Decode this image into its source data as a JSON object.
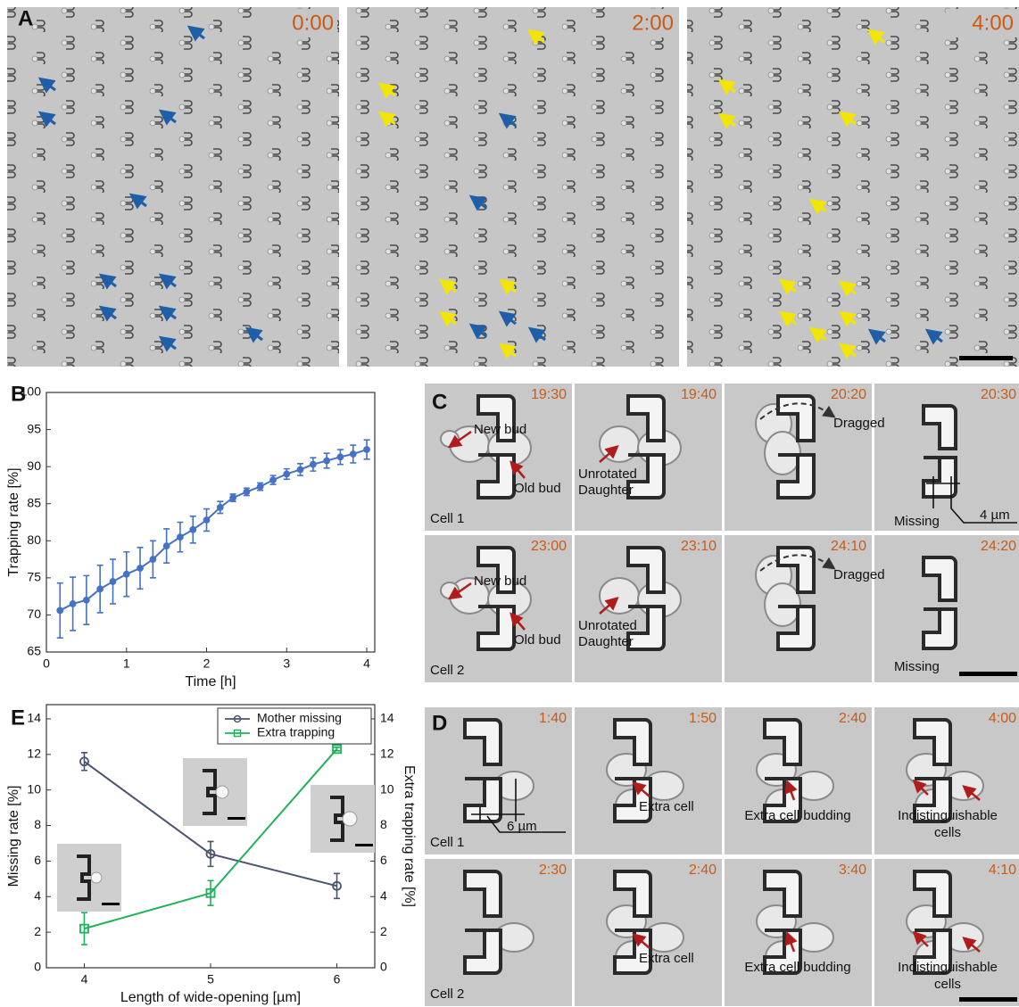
{
  "panel_labels": [
    "A",
    "B",
    "C",
    "D",
    "E"
  ],
  "panel_a": {
    "timestamps": [
      "0:00",
      "2:00",
      "4:00"
    ]
  },
  "panel_c": {
    "rows": [
      {
        "cell": "Cell 1",
        "times": [
          "19:30",
          "19:40",
          "20:20",
          "20:30"
        ],
        "new_bud": "New bud",
        "old_bud": "Old bud",
        "unrotated": [
          "Unrotated",
          "Daughter"
        ],
        "dragged": "Dragged",
        "missing": "Missing",
        "scale": "4 µm"
      },
      {
        "cell": "Cell 2",
        "times": [
          "23:00",
          "23:10",
          "24:10",
          "24:20"
        ],
        "new_bud": "New bud",
        "old_bud": "Old bud",
        "unrotated": [
          "Unrotated",
          "Daughter"
        ],
        "dragged": "Dragged",
        "missing": "Missing"
      }
    ]
  },
  "panel_d": {
    "rows": [
      {
        "cell": "Cell 1",
        "times": [
          "1:40",
          "1:50",
          "2:40",
          "4:00"
        ],
        "extra_cell": "Extra cell",
        "budding": "Extra cell budding",
        "indistinguishable": [
          "Indistinguishable",
          "cells"
        ],
        "scale": "6 µm"
      },
      {
        "cell": "Cell 2",
        "times": [
          "2:30",
          "2:40",
          "3:40",
          "4:10"
        ],
        "extra_cell": "Extra cell",
        "budding": "Extra cell budding",
        "indistinguishable": [
          "Indistinguishable",
          "cells"
        ]
      }
    ]
  },
  "chart_data": [
    {
      "type": "line",
      "xlabel": "Time [h]",
      "ylabel": "Trapping rate [%]",
      "x": [
        0.17,
        0.33,
        0.5,
        0.67,
        0.83,
        1.0,
        1.17,
        1.33,
        1.5,
        1.67,
        1.83,
        2.0,
        2.17,
        2.33,
        2.5,
        2.67,
        2.83,
        3.0,
        3.17,
        3.33,
        3.5,
        3.67,
        3.83,
        4.0
      ],
      "series": [
        {
          "color": "#4472c4",
          "marker": "dot",
          "values": [
            70.6,
            71.5,
            72.0,
            73.5,
            74.5,
            75.5,
            76.3,
            77.5,
            79.3,
            80.5,
            81.5,
            82.8,
            84.5,
            85.8,
            86.6,
            87.3,
            88.2,
            89.0,
            89.6,
            90.3,
            90.8,
            91.3,
            91.7,
            92.3
          ],
          "errors": [
            3.7,
            3.6,
            3.3,
            3.2,
            3.0,
            3.0,
            2.8,
            2.5,
            2.3,
            2.0,
            1.8,
            1.5,
            0.8,
            0.5,
            0.5,
            0.5,
            0.6,
            0.7,
            0.8,
            0.9,
            1.0,
            1.0,
            1.2,
            1.3
          ]
        }
      ],
      "xlim": [
        0,
        4.1
      ],
      "xticks": [
        0,
        1,
        2,
        3,
        4
      ],
      "ylim": [
        65,
        100
      ],
      "yticks": [
        65,
        70,
        75,
        80,
        85,
        90,
        95,
        100
      ]
    },
    {
      "type": "line",
      "xlabel": "Length of wide-opening [µm]",
      "ylabel": "Missing rate [%]",
      "y2label": "Extra trapping rate [%]",
      "x": [
        4,
        5,
        6
      ],
      "series": [
        {
          "name": "Mother missing",
          "color": "#4a5470",
          "marker": "circle",
          "values": [
            11.6,
            6.4,
            4.6
          ],
          "errors": [
            0.5,
            0.7,
            0.7
          ]
        },
        {
          "name": "Extra trapping",
          "color": "#1db35a",
          "marker": "square",
          "axis": "y2",
          "values": [
            2.2,
            4.2,
            12.3
          ],
          "errors": [
            0.9,
            0.7,
            0.1
          ]
        }
      ],
      "xlim": [
        3.7,
        6.3
      ],
      "xticks": [
        4,
        5,
        6
      ],
      "ylim": [
        0,
        14.8
      ],
      "yticks": [
        0,
        2,
        4,
        6,
        8,
        10,
        12,
        14
      ],
      "y2lim": [
        0,
        14.8
      ],
      "y2ticks": [
        0,
        2,
        4,
        6,
        8,
        10,
        12,
        14
      ],
      "legend": "upper right"
    }
  ]
}
